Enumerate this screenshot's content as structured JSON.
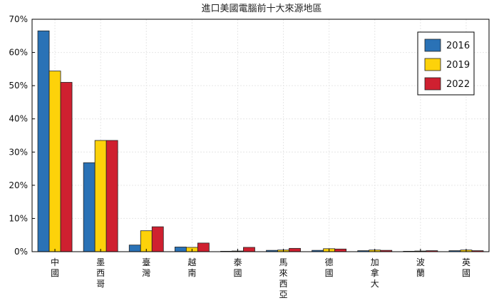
{
  "chart_data": {
    "type": "bar",
    "title": "進口美國電腦前十大來源地區",
    "xlabel": "",
    "ylabel": "",
    "ylim": [
      0,
      70
    ],
    "yticks": [
      "0%",
      "10%",
      "20%",
      "30%",
      "40%",
      "50%",
      "60%",
      "70%"
    ],
    "grid": true,
    "legend_position": "top-right",
    "categories": [
      "中國",
      "墨西哥",
      "臺灣",
      "越南",
      "泰國",
      "馬來西亞",
      "德國",
      "加拿大",
      "波蘭",
      "英國"
    ],
    "series": [
      {
        "name": "2016",
        "color": "#2a72b6",
        "values": [
          66.5,
          26.8,
          2.0,
          1.4,
          0.1,
          0.4,
          0.4,
          0.3,
          0.1,
          0.3
        ]
      },
      {
        "name": "2019",
        "color": "#fdd20a",
        "values": [
          54.4,
          33.5,
          6.3,
          1.3,
          0.2,
          0.5,
          0.9,
          0.5,
          0.2,
          0.5
        ]
      },
      {
        "name": "2022",
        "color": "#cf2030",
        "values": [
          51.0,
          33.5,
          7.5,
          2.6,
          1.3,
          1.0,
          0.8,
          0.4,
          0.3,
          0.3
        ]
      }
    ]
  }
}
